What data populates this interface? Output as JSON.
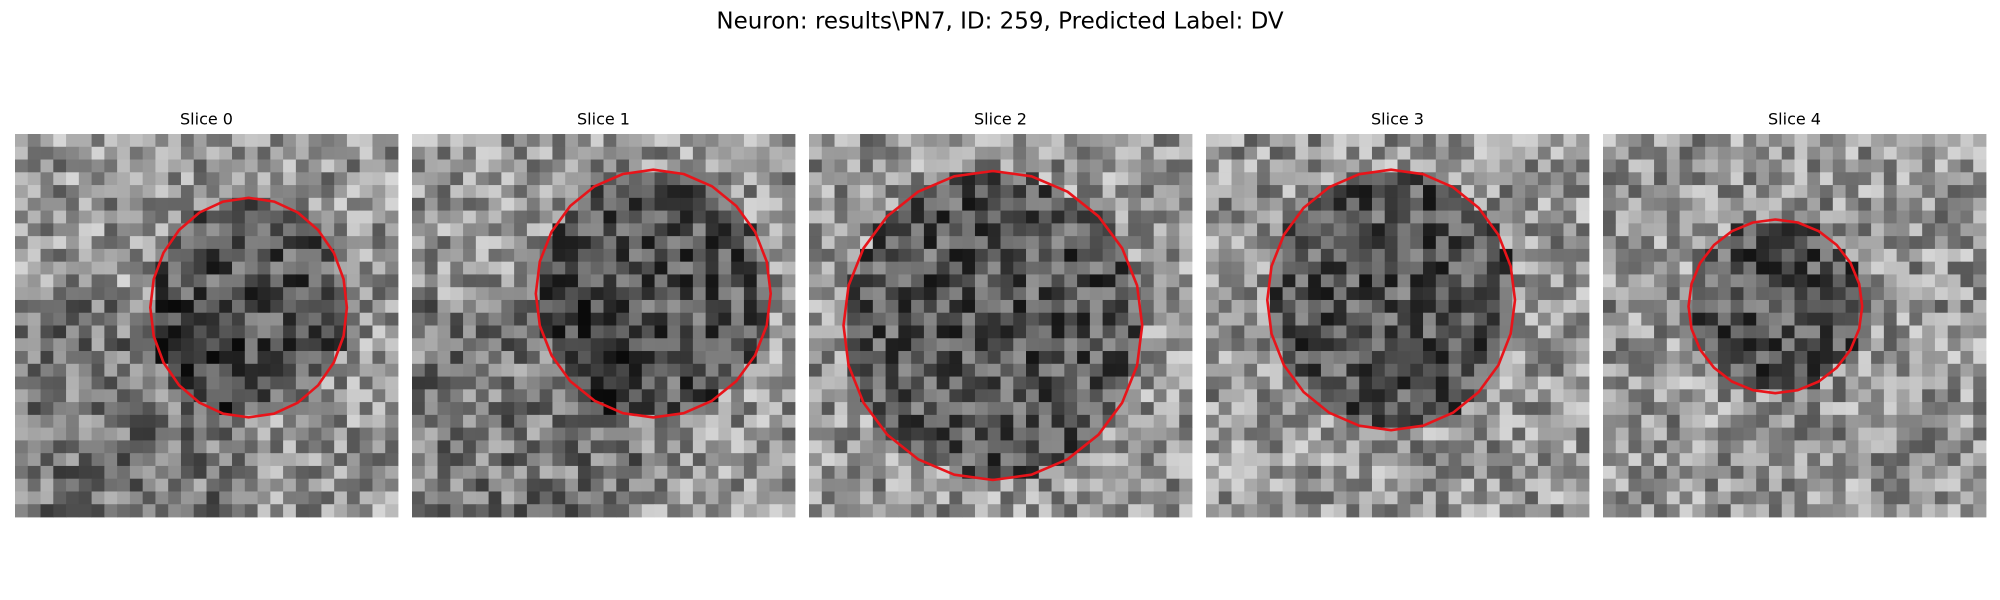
{
  "title": "Neuron: results\\PN7, ID: 259, Predicted Label: DV",
  "panels": [
    {
      "title": "Slice 0"
    },
    {
      "title": "Slice 1"
    },
    {
      "title": "Slice 2"
    },
    {
      "title": "Slice 3"
    },
    {
      "title": "Slice 4"
    }
  ]
}
